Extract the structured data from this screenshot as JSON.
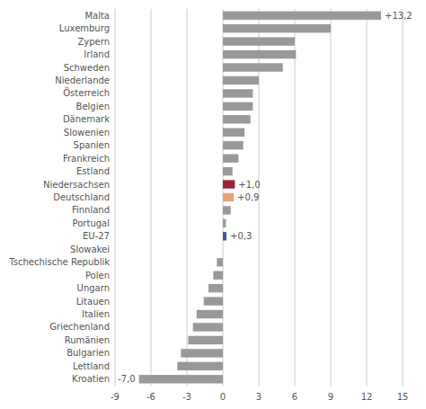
{
  "chart_data": {
    "type": "bar",
    "orientation": "horizontal",
    "categories": [
      "Malta",
      "Luxemburg",
      "Zypern",
      "Irland",
      "Schweden",
      "Niederlande",
      "Österreich",
      "Belgien",
      "Dänemark",
      "Slowenien",
      "Spanien",
      "Frankreich",
      "Estland",
      "Niedersachsen",
      "Deutschland",
      "Finnland",
      "Portugal",
      "EU-27",
      "Slowakei",
      "Tschechische Republik",
      "Polen",
      "Ungarn",
      "Litauen",
      "Italien",
      "Griechenland",
      "Rumänien",
      "Bulgarien",
      "Lettland",
      "Kroatien"
    ],
    "values": [
      13.2,
      9.0,
      6.0,
      6.1,
      5.0,
      3.0,
      2.5,
      2.5,
      2.3,
      1.8,
      1.7,
      1.3,
      0.8,
      1.0,
      0.9,
      0.65,
      0.25,
      0.3,
      0.0,
      -0.5,
      -0.8,
      -1.2,
      -1.6,
      -2.2,
      -2.5,
      -2.9,
      -3.5,
      -3.8,
      -7.0
    ],
    "colors": [
      "#999999",
      "#999999",
      "#999999",
      "#999999",
      "#999999",
      "#999999",
      "#999999",
      "#999999",
      "#999999",
      "#999999",
      "#999999",
      "#999999",
      "#999999",
      "#9b2335",
      "#e8a27a",
      "#999999",
      "#999999",
      "#3c5a8a",
      "#999999",
      "#999999",
      "#999999",
      "#999999",
      "#999999",
      "#999999",
      "#999999",
      "#999999",
      "#999999",
      "#999999",
      "#999999"
    ],
    "data_labels": true,
    "value_labels": [
      "+13,2",
      null,
      null,
      null,
      null,
      null,
      null,
      null,
      null,
      null,
      null,
      null,
      null,
      "+1,0",
      "+0,9",
      null,
      null,
      "+0,3",
      null,
      null,
      null,
      null,
      null,
      null,
      null,
      null,
      null,
      null,
      "-7,0"
    ],
    "xlim": [
      -9,
      15
    ],
    "xticks": [
      -9,
      -6,
      -3,
      0,
      3,
      6,
      9,
      12,
      15
    ],
    "grid": true
  }
}
